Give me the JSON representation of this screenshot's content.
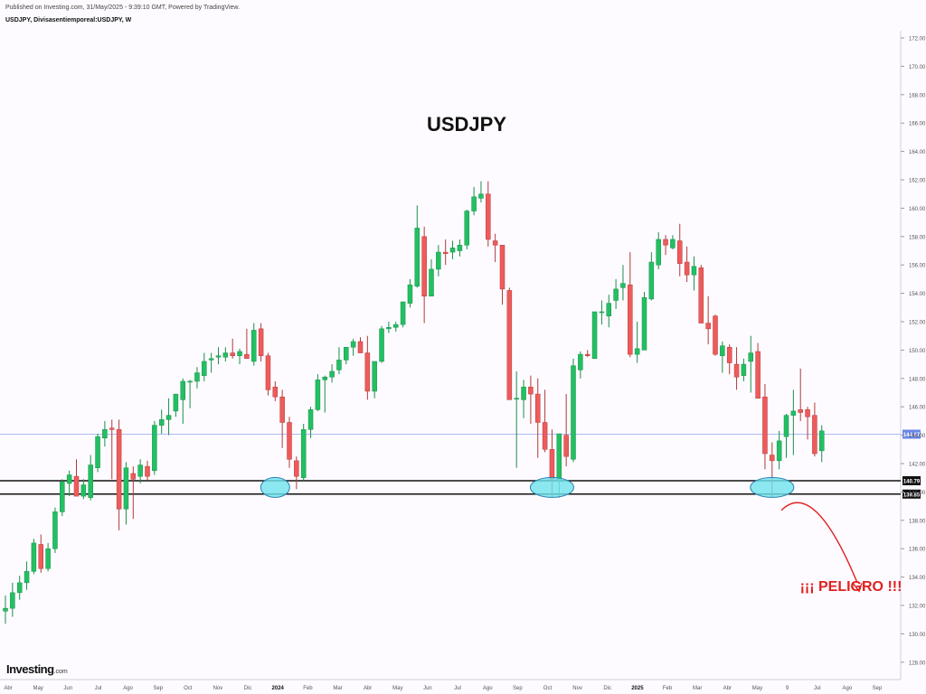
{
  "header": {
    "published": "Published on Investing.com, 31/May/2025 - 9:39:10 GMT, Powered by TradingView.",
    "symbol_line": "USDJPY, Divisasentiemporeal:USDJPY, W"
  },
  "logo": {
    "main": "Investing",
    "suffix": ".com"
  },
  "colors": {
    "up": "#22c063",
    "down": "#ef5b5b",
    "current_line": "#aebbf5",
    "support": "#111111",
    "ellipse_fill": "#6ee3ee",
    "ellipse_stroke": "#2a7fb0",
    "danger": "#e02020",
    "up_border": "#1a8f49",
    "down_border": "#b23a3a"
  },
  "chart_data": {
    "type": "candlestick",
    "title": "USDJPY",
    "timeframe": "W",
    "y_axis": {
      "ticks": [
        "172.00",
        "170.00",
        "168.00",
        "166.00",
        "164.00",
        "162.00",
        "160.00",
        "158.00",
        "156.00",
        "154.00",
        "152.00",
        "150.00",
        "148.00",
        "146.00",
        "144.00",
        "142.00",
        "140.00",
        "138.00",
        "136.00",
        "134.00",
        "132.00",
        "130.00",
        "128.00"
      ],
      "range": [
        127.3,
        173.0
      ]
    },
    "x_axis": {
      "labels": [
        "Abr",
        "May",
        "Jun",
        "Jul",
        "Ago",
        "Sep",
        "Oct",
        "Nov",
        "Dic",
        "2024",
        "Feb",
        "Mar",
        "Abr",
        "May",
        "Jun",
        "Jul",
        "Ago",
        "Sep",
        "Oct",
        "Nov",
        "Dic",
        "2025",
        "Feb",
        "Mar",
        "Abr",
        "May",
        "9",
        "Jul",
        "Ago",
        "Sep"
      ]
    },
    "current_price": {
      "value": 144.07,
      "label": "144.07"
    },
    "support_levels": [
      {
        "value": 140.79,
        "label": "140.79"
      },
      {
        "value": 139.85,
        "label": "139.85"
      }
    ],
    "annotation": "¡¡¡ PELIGRO !!!",
    "candles": [
      [
        131.6,
        132.7,
        130.7,
        131.8
      ],
      [
        131.8,
        133.6,
        131.2,
        132.9
      ],
      [
        132.9,
        134.1,
        132.4,
        133.6
      ],
      [
        133.6,
        135.1,
        133.1,
        134.4
      ],
      [
        134.4,
        136.7,
        134.2,
        136.4
      ],
      [
        136.3,
        137.0,
        134.3,
        134.6
      ],
      [
        134.6,
        136.4,
        134.4,
        136.0
      ],
      [
        136.0,
        138.9,
        135.7,
        138.6
      ],
      [
        138.6,
        140.9,
        138.3,
        140.7
      ],
      [
        140.6,
        141.5,
        139.7,
        141.2
      ],
      [
        141.1,
        142.3,
        139.9,
        139.7
      ],
      [
        139.7,
        140.9,
        139.5,
        140.5
      ],
      [
        139.6,
        142.6,
        139.4,
        141.9
      ],
      [
        141.7,
        144.1,
        141.4,
        143.9
      ],
      [
        143.8,
        145.0,
        143.2,
        144.4
      ],
      [
        144.5,
        145.1,
        140.9,
        144.4
      ],
      [
        144.4,
        145.1,
        137.3,
        138.8
      ],
      [
        138.8,
        142.1,
        137.7,
        141.7
      ],
      [
        141.3,
        141.8,
        138.1,
        140.9
      ],
      [
        141.1,
        142.3,
        140.6,
        141.9
      ],
      [
        141.8,
        142.2,
        140.8,
        141.1
      ],
      [
        141.5,
        145.0,
        141.2,
        144.7
      ],
      [
        144.7,
        145.8,
        144.1,
        145.1
      ],
      [
        145.1,
        146.6,
        144.0,
        145.4
      ],
      [
        145.7,
        146.6,
        145.3,
        146.9
      ],
      [
        146.5,
        148.0,
        144.8,
        147.8
      ],
      [
        147.8,
        147.9,
        145.9,
        147.8
      ],
      [
        147.8,
        148.8,
        147.3,
        148.4
      ],
      [
        148.2,
        149.8,
        147.8,
        149.2
      ],
      [
        149.3,
        149.8,
        148.4,
        149.4
      ],
      [
        149.5,
        150.2,
        149.0,
        149.6
      ],
      [
        149.5,
        150.2,
        149.2,
        149.8
      ],
      [
        149.8,
        150.8,
        149.4,
        149.6
      ],
      [
        149.6,
        150.1,
        149.0,
        149.9
      ],
      [
        149.7,
        151.5,
        149.5,
        149.4
      ],
      [
        149.2,
        151.9,
        148.9,
        151.4
      ],
      [
        151.5,
        151.9,
        149.2,
        149.6
      ],
      [
        149.6,
        149.8,
        146.8,
        147.2
      ],
      [
        147.4,
        147.8,
        146.4,
        146.7
      ],
      [
        146.7,
        147.2,
        143.1,
        144.9
      ],
      [
        144.9,
        145.3,
        141.7,
        142.3
      ],
      [
        142.2,
        142.5,
        140.2,
        141.1
      ],
      [
        141.0,
        144.8,
        140.8,
        144.4
      ],
      [
        144.4,
        146.0,
        143.8,
        145.8
      ],
      [
        145.8,
        148.3,
        145.7,
        147.9
      ],
      [
        147.9,
        148.2,
        145.6,
        148.1
      ],
      [
        148.1,
        149.0,
        147.7,
        148.5
      ],
      [
        148.6,
        150.2,
        148.3,
        149.3
      ],
      [
        149.3,
        150.1,
        149.0,
        150.2
      ],
      [
        150.2,
        150.8,
        149.6,
        150.6
      ],
      [
        150.6,
        150.9,
        149.8,
        149.8
      ],
      [
        149.8,
        151.0,
        146.5,
        147.1
      ],
      [
        147.1,
        149.2,
        146.6,
        149.2
      ],
      [
        149.2,
        151.7,
        149.1,
        151.5
      ],
      [
        151.5,
        152.0,
        151.2,
        151.6
      ],
      [
        151.6,
        152.0,
        151.3,
        151.8
      ],
      [
        151.8,
        153.2,
        151.6,
        153.4
      ],
      [
        153.3,
        155.0,
        153.0,
        154.6
      ],
      [
        154.5,
        160.2,
        154.4,
        158.6
      ],
      [
        158.0,
        158.7,
        151.9,
        153.8
      ],
      [
        153.8,
        156.4,
        153.8,
        155.7
      ],
      [
        155.7,
        157.4,
        155.2,
        156.9
      ],
      [
        156.9,
        157.8,
        156.0,
        156.8
      ],
      [
        156.9,
        157.7,
        156.4,
        157.2
      ],
      [
        157.0,
        157.8,
        156.6,
        157.4
      ],
      [
        157.4,
        159.9,
        157.1,
        159.8
      ],
      [
        159.8,
        161.5,
        159.5,
        160.8
      ],
      [
        160.7,
        161.9,
        160.4,
        161.0
      ],
      [
        161.0,
        161.9,
        157.3,
        157.8
      ],
      [
        157.7,
        158.2,
        156.2,
        157.4
      ],
      [
        157.4,
        157.4,
        153.2,
        154.3
      ],
      [
        154.2,
        154.4,
        146.7,
        146.5
      ],
      [
        146.6,
        148.5,
        141.7,
        146.6
      ],
      [
        146.5,
        147.9,
        145.2,
        147.4
      ],
      [
        147.4,
        148.2,
        144.8,
        146.9
      ],
      [
        146.9,
        148.0,
        142.4,
        144.9
      ],
      [
        144.9,
        147.2,
        142.8,
        143.0
      ],
      [
        143.0,
        144.4,
        139.6,
        140.9
      ],
      [
        140.8,
        144.0,
        139.6,
        144.1
      ],
      [
        144.0,
        146.9,
        141.8,
        142.5
      ],
      [
        142.3,
        149.4,
        142.1,
        148.9
      ],
      [
        148.6,
        149.9,
        148.0,
        149.7
      ],
      [
        149.7,
        150.0,
        149.5,
        149.6
      ],
      [
        149.4,
        152.5,
        149.4,
        152.7
      ],
      [
        152.7,
        153.5,
        151.8,
        152.7
      ],
      [
        152.4,
        153.9,
        151.6,
        153.3
      ],
      [
        153.5,
        155.0,
        152.9,
        154.3
      ],
      [
        154.4,
        156.0,
        153.5,
        154.7
      ],
      [
        154.6,
        156.9,
        149.5,
        149.7
      ],
      [
        149.7,
        152.0,
        149.1,
        150.1
      ],
      [
        150.0,
        154.1,
        150.0,
        153.7
      ],
      [
        153.6,
        156.9,
        153.5,
        156.2
      ],
      [
        156.0,
        158.3,
        155.7,
        157.8
      ],
      [
        157.8,
        158.1,
        156.7,
        157.4
      ],
      [
        157.2,
        158.1,
        157.1,
        157.8
      ],
      [
        157.7,
        158.9,
        155.2,
        156.1
      ],
      [
        156.2,
        157.3,
        154.8,
        155.3
      ],
      [
        155.3,
        156.6,
        154.2,
        155.9
      ],
      [
        155.8,
        156.0,
        152.1,
        151.9
      ],
      [
        151.9,
        153.8,
        150.4,
        151.5
      ],
      [
        152.4,
        152.5,
        149.6,
        149.7
      ],
      [
        149.6,
        150.6,
        148.4,
        150.3
      ],
      [
        150.2,
        150.4,
        148.3,
        149.1
      ],
      [
        149.0,
        150.2,
        147.2,
        148.1
      ],
      [
        148.2,
        149.4,
        147.8,
        149.0
      ],
      [
        149.2,
        151.0,
        147.0,
        149.8
      ],
      [
        149.9,
        150.5,
        146.8,
        146.6
      ],
      [
        146.7,
        147.6,
        141.6,
        142.7
      ],
      [
        142.6,
        143.5,
        139.6,
        142.2
      ],
      [
        142.2,
        144.3,
        141.6,
        143.6
      ],
      [
        143.9,
        145.5,
        142.4,
        145.4
      ],
      [
        145.4,
        147.2,
        142.6,
        145.7
      ],
      [
        145.8,
        148.7,
        145.0,
        145.6
      ],
      [
        145.8,
        146.0,
        143.7,
        145.3
      ],
      [
        145.4,
        146.3,
        142.5,
        142.7
      ],
      [
        142.9,
        144.7,
        142.1,
        144.3
      ]
    ]
  }
}
